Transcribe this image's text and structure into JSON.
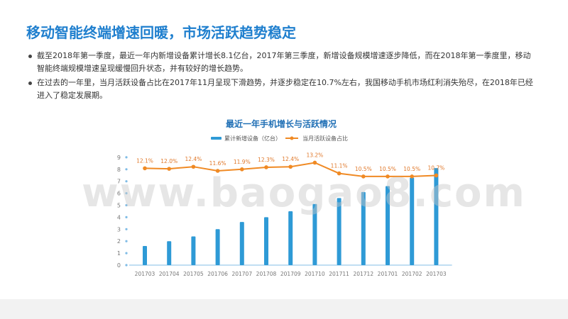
{
  "slide": {
    "title": "移动智能终端增速回暖，市场活跃趋势稳定",
    "bullets": [
      "截至2018年第一季度，最近一年内新增设备累计增长8.1亿台，2017年第三季度，新增设备规模增速逐步降低，而在2018年第一季度里，移动智能终端规模增速呈现缓慢回升状态，并有较好的增长趋势。",
      "在过去的一年里，当月活跃设备占比在2017年11月呈现下滑趋势，并逐步稳定在10.7%左右，我国移动手机市场红利消失殆尽，在2018年已经进入了稳定发展期。"
    ],
    "watermark": "www.baogao8.com"
  },
  "colors": {
    "title": "#1f7fce",
    "bar": "#2e9ad6",
    "line": "#f08a24",
    "label_line": "#e0782a"
  },
  "chart_data": {
    "type": "bar+line",
    "title": "最近一年手机增长与活跃情况",
    "categories": [
      "201703",
      "201704",
      "201705",
      "201706",
      "201707",
      "201708",
      "201709",
      "201710",
      "201711",
      "201712",
      "201701",
      "201702",
      "201703"
    ],
    "ylim": [
      0,
      9
    ],
    "yticks": [
      "0",
      "1",
      "2",
      "3",
      "4",
      "5",
      "6",
      "7",
      "8",
      "9"
    ],
    "series": [
      {
        "name": "累计新增设备（亿台）",
        "type": "bar",
        "values": [
          1.6,
          2.0,
          2.4,
          3.0,
          3.6,
          4.0,
          4.5,
          5.1,
          5.6,
          6.1,
          6.6,
          7.3,
          8.1
        ]
      },
      {
        "name": "当月活跃设备占比",
        "type": "line",
        "values": [
          12.1,
          12.0,
          12.4,
          11.6,
          11.9,
          12.3,
          12.4,
          13.2,
          11.1,
          10.5,
          10.5,
          10.5,
          10.7
        ],
        "labels": [
          "12.1%",
          "12.0%",
          "12.4%",
          "11.6%",
          "11.9%",
          "12.3%",
          "12.4%",
          "13.2%",
          "11.1%",
          "10.5%",
          "10.5%",
          "10.5%",
          "10.7%"
        ]
      }
    ]
  }
}
